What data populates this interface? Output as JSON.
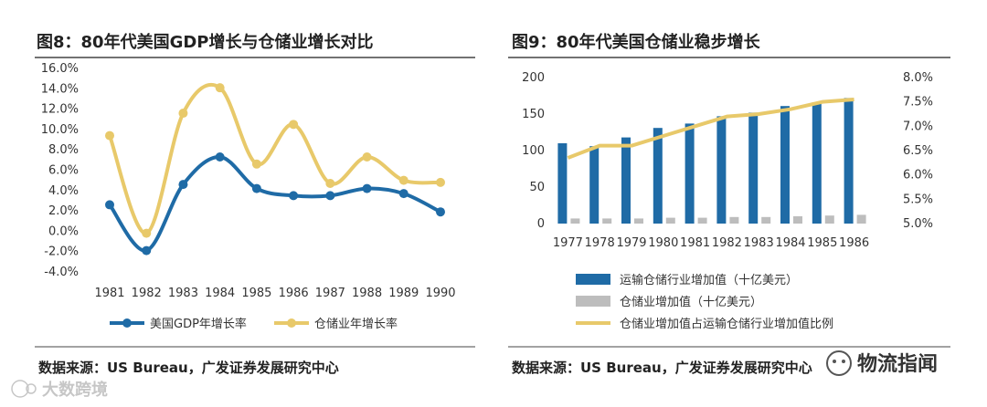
{
  "chart_data": [
    {
      "type": "line",
      "title": "图8：80年代美国GDP增长与仓储业增长对比",
      "x": [
        "1981",
        "1982",
        "1983",
        "1984",
        "1985",
        "1986",
        "1987",
        "1988",
        "1989",
        "1990"
      ],
      "ylim": [
        -4.0,
        16.0
      ],
      "yticks": [
        "16.0%",
        "14.0%",
        "12.0%",
        "10.0%",
        "8.0%",
        "6.0%",
        "4.0%",
        "2.0%",
        "0.0%",
        "-2.0%",
        "-4.0%"
      ],
      "series": [
        {
          "name": "美国GDP年增长率",
          "color": "#1F6BA6",
          "values": [
            2.6,
            -1.9,
            4.6,
            7.3,
            4.2,
            3.5,
            3.5,
            4.2,
            3.7,
            1.9
          ]
        },
        {
          "name": "仓储业年增长率",
          "color": "#E8C96A",
          "values": [
            9.4,
            -0.2,
            11.6,
            14.1,
            6.6,
            10.5,
            4.7,
            7.3,
            5.0,
            4.8
          ]
        }
      ],
      "source": "数据来源：US Bureau，广发证券发展研究中心"
    },
    {
      "type": "bar",
      "title": "图9：80年代美国仓储业稳步增长",
      "categories": [
        "1977",
        "1978",
        "1979",
        "1980",
        "1981",
        "1982",
        "1983",
        "1984",
        "1985",
        "1986"
      ],
      "ylim": [
        0,
        200
      ],
      "yticks_left": [
        "200",
        "150",
        "100",
        "50",
        "0"
      ],
      "ylim_right": [
        5.0,
        8.0
      ],
      "yticks_right": [
        "8.0%",
        "7.5%",
        "7.0%",
        "6.5%",
        "6.0%",
        "5.5%",
        "5.0%"
      ],
      "series": [
        {
          "name": "运输仓储行业增加值（十亿美元）",
          "color": "#1F6BA6",
          "axis": "left",
          "kind": "bar",
          "values": [
            110,
            106,
            118,
            131,
            137,
            147,
            152,
            161,
            166,
            172
          ]
        },
        {
          "name": "仓储业增加值（十亿美元）",
          "color": "#BDBDBD",
          "axis": "left",
          "kind": "bar",
          "values": [
            7,
            7,
            7,
            8,
            8,
            9,
            9,
            10,
            11,
            12
          ]
        },
        {
          "name": "仓储业增加值占运输仓储行业增加值比例",
          "color": "#E8C96A",
          "axis": "right",
          "kind": "line",
          "values": [
            6.35,
            6.6,
            6.6,
            6.8,
            7.0,
            7.2,
            7.25,
            7.35,
            7.5,
            7.55
          ]
        }
      ],
      "source": "数据来源：US Bureau，广发证券发展研究中心"
    }
  ],
  "watermarks": {
    "left": "大数跨境",
    "right": "物流指闻"
  }
}
